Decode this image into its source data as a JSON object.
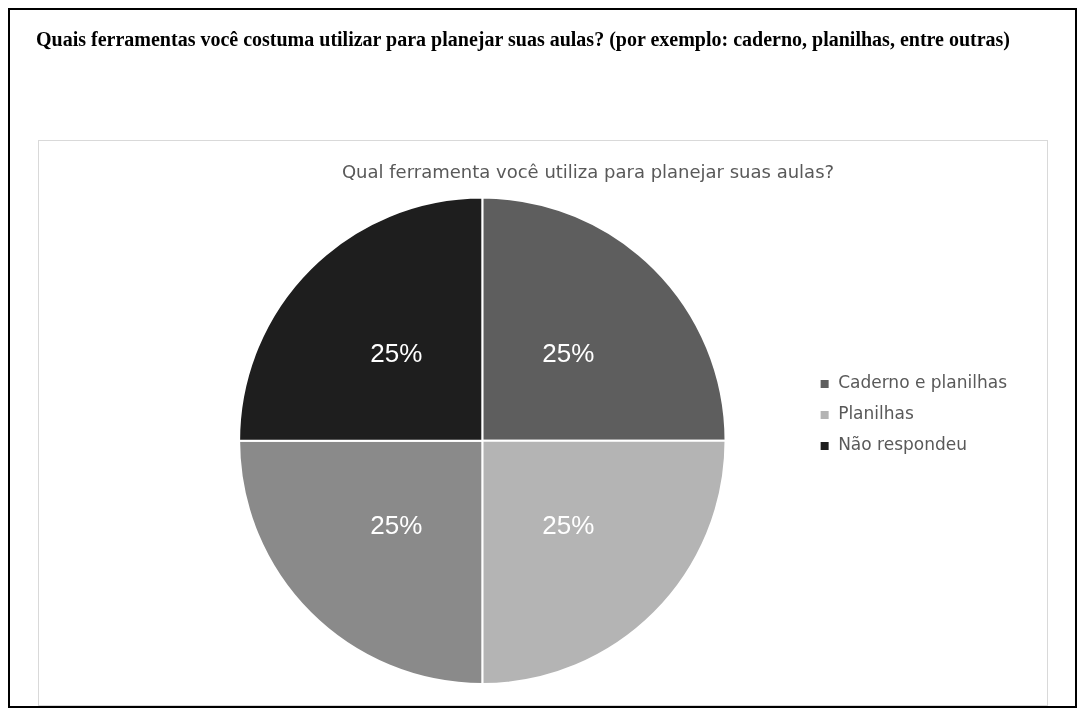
{
  "chart_data": {
    "type": "pie",
    "title": "Quais ferramentas você costuma utilizar para planejar suas aulas? (por exemplo: caderno, planilhas, entre outras)",
    "subtitle": "Qual ferramenta você utiliza para planejar suas aulas?",
    "categories": [
      "Caderno e planilhas",
      "Planilhas",
      null,
      "Não respondeu"
    ],
    "values": [
      25,
      25,
      25,
      25
    ],
    "colors": [
      "#5e5e5e",
      "#b4b4b4",
      "#8a8a8a",
      "#1e1e1e"
    ],
    "value_labels": [
      "25%",
      "25%",
      "25%",
      "25%"
    ],
    "legend": "right"
  }
}
